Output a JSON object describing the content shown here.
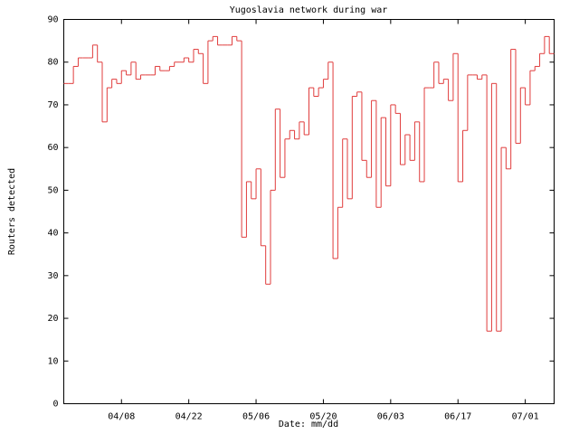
{
  "chart_data": {
    "type": "step",
    "title": "Yugoslavia network during war",
    "x_label": "Date: mm/dd",
    "y_label": "Routers detected",
    "x": [
      "03/27",
      "03/28",
      "03/29",
      "03/30",
      "03/31",
      "04/01",
      "04/02",
      "04/03",
      "04/04",
      "04/05",
      "04/06",
      "04/07",
      "04/08",
      "04/09",
      "04/10",
      "04/11",
      "04/12",
      "04/13",
      "04/14",
      "04/15",
      "04/16",
      "04/17",
      "04/18",
      "04/19",
      "04/20",
      "04/21",
      "04/22",
      "04/23",
      "04/24",
      "04/25",
      "04/26",
      "04/27",
      "04/28",
      "04/29",
      "04/30",
      "05/01",
      "05/02",
      "05/03",
      "05/04",
      "05/05",
      "05/06",
      "05/07",
      "05/08",
      "05/09",
      "05/10",
      "05/11",
      "05/12",
      "05/13",
      "05/14",
      "05/15",
      "05/16",
      "05/17",
      "05/18",
      "05/19",
      "05/20",
      "05/21",
      "05/22",
      "05/23",
      "05/24",
      "05/25",
      "05/26",
      "05/27",
      "05/28",
      "05/29",
      "05/30",
      "05/31",
      "06/01",
      "06/02",
      "06/03",
      "06/04",
      "06/05",
      "06/06",
      "06/07",
      "06/08",
      "06/09",
      "06/10",
      "06/11",
      "06/12",
      "06/13",
      "06/14",
      "06/15",
      "06/16",
      "06/17",
      "06/18",
      "06/19",
      "06/20",
      "06/21",
      "06/22",
      "06/23",
      "06/24",
      "06/25",
      "06/26",
      "06/27",
      "06/28",
      "06/29",
      "06/30",
      "07/01",
      "07/02",
      "07/03",
      "07/04",
      "07/05",
      "07/06"
    ],
    "series": [
      {
        "color": "#e03c3c",
        "values": [
          75,
          75,
          79,
          81,
          81,
          81,
          84,
          80,
          66,
          74,
          76,
          75,
          78,
          77,
          80,
          76,
          77,
          77,
          77,
          79,
          78,
          78,
          79,
          80,
          80,
          81,
          80,
          83,
          82,
          75,
          85,
          86,
          84,
          84,
          84,
          86,
          85,
          39,
          52,
          48,
          55,
          37,
          28,
          50,
          69,
          53,
          62,
          64,
          62,
          66,
          63,
          74,
          72,
          74,
          76,
          80,
          34,
          46,
          62,
          48,
          72,
          73,
          57,
          53,
          71,
          46,
          67,
          51,
          70,
          68,
          56,
          63,
          57,
          66,
          52,
          74,
          74,
          80,
          75,
          76,
          71,
          82,
          52,
          64,
          77,
          77,
          76,
          77,
          17,
          75,
          17,
          60,
          55,
          83,
          61,
          74,
          70,
          78,
          79,
          82,
          86,
          82
        ]
      }
    ],
    "xlim": [
      "03/27",
      "07/07"
    ],
    "xticks": [
      "04/08",
      "04/22",
      "05/06",
      "05/20",
      "06/03",
      "06/17",
      "07/01"
    ],
    "ylim": [
      0,
      90
    ],
    "yticks": [
      0,
      10,
      20,
      30,
      40,
      50,
      60,
      70,
      80,
      90
    ],
    "grid": false
  }
}
